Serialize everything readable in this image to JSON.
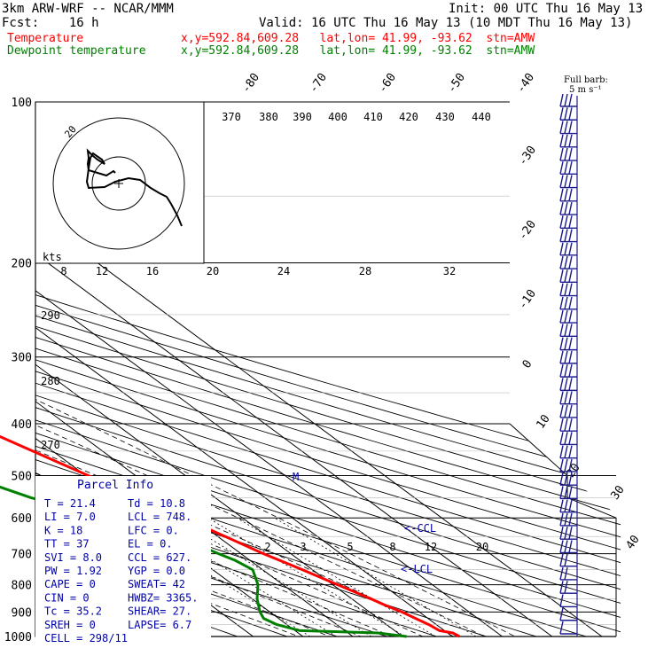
{
  "header": {
    "model": "3km ARW-WRF -- NCAR/MMM",
    "init": "Init: 00 UTC Thu 16 May 13",
    "fcst": "Fcst:    16 h",
    "valid": "Valid: 16 UTC Thu 16 May 13 (10 MDT Thu 16 May 13)",
    "temp_label": "Temperature",
    "temp_info": "x,y=592.84,609.28   lat,lon= 41.99, -93.62  stn=AMW",
    "dew_label": "Dewpoint temperature",
    "dew_info": "x,y=592.84,609.28   lat,lon= 41.99, -93.62  stn=AMW"
  },
  "colors": {
    "temperature": "#ff0000",
    "dewpoint": "#008000",
    "barbs": "#1a1a8c",
    "parcel": "#0000aa",
    "background": "#ffffff",
    "grid": "#000000"
  },
  "barb_legend": {
    "line1": "Full barb:",
    "line2": "5 m s⁻¹"
  },
  "parcel_info": {
    "title": "Parcel Info",
    "rows": [
      [
        "T  =    21.4",
        "Td =  10.8"
      ],
      [
        "LI =     7.0",
        "LCL =  748."
      ],
      [
        "K  =      18",
        "LFC =    0."
      ],
      [
        "TT =      37",
        "EL  =    0."
      ],
      [
        "SVI =    8.0",
        "CCL =  627."
      ],
      [
        "PW =    1.92",
        "YGP =   0.0"
      ],
      [
        "CAPE =     0",
        "SWEAT=  42"
      ],
      [
        "CIN =      0",
        "HWBZ= 3365."
      ],
      [
        "Tc =    35.2",
        "SHEAR=  27."
      ],
      [
        "SREH =     0",
        "LAPSE=  6.7"
      ],
      [
        "CELL = 298/11",
        ""
      ]
    ]
  },
  "markers": {
    "ccl": "<-CCL",
    "lcl": "<-LCL",
    "parcel_lcl": "M"
  },
  "hodograph": {
    "units": "kts",
    "ring_label": "20",
    "speed_ticks": [
      "8",
      "12",
      "16",
      "20",
      "24",
      "28",
      "32"
    ]
  },
  "chart_data": {
    "type": "line",
    "title": "",
    "xlabel": "",
    "ylabel": "",
    "y_axis": {
      "name": "pressure",
      "unit": "hPa",
      "scale": "log",
      "range": [
        1000,
        100
      ],
      "ticks": [
        "100",
        "200",
        "300",
        "400",
        "500",
        "600",
        "700",
        "800",
        "900",
        "1000"
      ]
    },
    "skew_temperature_ticks": [
      "-80",
      "-70",
      "-60",
      "-50",
      "-40",
      "-30",
      "-20",
      "-10",
      "0",
      "10",
      "20",
      "30",
      "40"
    ],
    "dry_adiabat_labels": [
      "370",
      "380",
      "390",
      "400",
      "410",
      "420",
      "430",
      "440",
      "290",
      "280",
      "270"
    ],
    "mixing_ratio_labels": [
      "2",
      "3",
      "5",
      "8",
      "12",
      "20"
    ],
    "series": [
      {
        "name": "Temperature",
        "color": "#ff0000",
        "points": [
          [
            1000,
            21.4
          ],
          [
            985,
            21.0
          ],
          [
            975,
            19.0
          ],
          [
            950,
            18.5
          ],
          [
            925,
            17.5
          ],
          [
            900,
            16.5
          ],
          [
            875,
            15.0
          ],
          [
            850,
            13.8
          ],
          [
            800,
            11.0
          ],
          [
            750,
            8.0
          ],
          [
            700,
            4.5
          ],
          [
            650,
            1.5
          ],
          [
            600,
            -1.8
          ],
          [
            550,
            -5.5
          ],
          [
            500,
            -9.5
          ],
          [
            450,
            -14.0
          ],
          [
            400,
            -19.0
          ],
          [
            350,
            -25.0
          ],
          [
            300,
            -32.0
          ],
          [
            250,
            -40.0
          ],
          [
            200,
            -49.0
          ],
          [
            175,
            -53.0
          ],
          [
            160,
            -56.0
          ],
          [
            150,
            -57.0
          ],
          [
            130,
            -58.0
          ],
          [
            115,
            -61.0
          ],
          [
            100,
            -64.0
          ]
        ]
      },
      {
        "name": "Dewpoint temperature",
        "color": "#008000",
        "points": [
          [
            1000,
            10.8
          ],
          [
            985,
            6.0
          ],
          [
            975,
            -9.0
          ],
          [
            950,
            -12.0
          ],
          [
            925,
            -13.0
          ],
          [
            900,
            -12.0
          ],
          [
            850,
            -9.0
          ],
          [
            800,
            -5.0
          ],
          [
            750,
            -2.0
          ],
          [
            720,
            -3.0
          ],
          [
            700,
            -4.5
          ],
          [
            650,
            -8.0
          ],
          [
            620,
            -13.0
          ],
          [
            600,
            -17.5
          ],
          [
            575,
            -22.0
          ],
          [
            550,
            -27.0
          ],
          [
            520,
            -31.0
          ],
          [
            500,
            -34.0
          ],
          [
            470,
            -38.0
          ],
          [
            450,
            -38.5
          ],
          [
            430,
            -38.0
          ],
          [
            410,
            -38.0
          ],
          [
            400,
            -38.0
          ],
          [
            380,
            -39.0
          ],
          [
            350,
            -42.0
          ],
          [
            300,
            -50.0
          ],
          [
            250,
            -58.0
          ],
          [
            220,
            -62.0
          ],
          [
            200,
            -66.0
          ],
          [
            180,
            -68.0
          ],
          [
            160,
            -70.0
          ],
          [
            140,
            -72.0
          ],
          [
            120,
            -75.0
          ],
          [
            100,
            -78.0
          ]
        ]
      }
    ],
    "hodograph_trace": [
      [
        130,
        195
      ],
      [
        128,
        193
      ],
      [
        120,
        198
      ],
      [
        110,
        195
      ],
      [
        100,
        192
      ],
      [
        99,
        185
      ],
      [
        100,
        178
      ],
      [
        99,
        170
      ],
      [
        105,
        176
      ],
      [
        110,
        180
      ],
      [
        118,
        185
      ],
      [
        115,
        180
      ],
      [
        105,
        173
      ],
      [
        102,
        178
      ],
      [
        100,
        190
      ],
      [
        98,
        205
      ],
      [
        100,
        212
      ],
      [
        118,
        211
      ],
      [
        130,
        205
      ],
      [
        145,
        201
      ],
      [
        158,
        203
      ],
      [
        170,
        212
      ],
      [
        180,
        218
      ],
      [
        188,
        222
      ],
      [
        193,
        230
      ],
      [
        200,
        243
      ],
      [
        205,
        255
      ]
    ],
    "wind_barbs_count": 40
  }
}
